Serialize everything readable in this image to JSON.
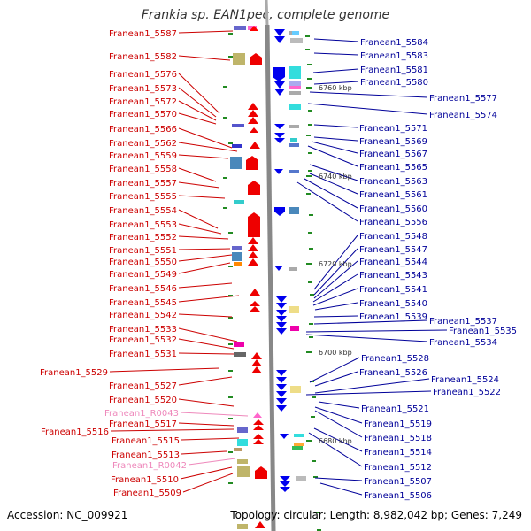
{
  "title": "Frankia sp. EAN1pec, complete genome",
  "accession": "Accession: NC_009921",
  "topology": "Topology: circular; Length: 8,982,042 bp; Genes: 7,249",
  "colors": {
    "left": "#cc0000",
    "right": "#000099",
    "rna": "#ee88bb",
    "axis": "#888888",
    "tick": "#228b22"
  },
  "left_labels": [
    {
      "name": "Franean1_5587",
      "rna": false
    },
    {
      "name": "Franean1_5582",
      "rna": false
    },
    {
      "name": "Franean1_5576",
      "rna": false
    },
    {
      "name": "Franean1_5573",
      "rna": false
    },
    {
      "name": "Franean1_5572",
      "rna": false
    },
    {
      "name": "Franean1_5570",
      "rna": false
    },
    {
      "name": "Franean1_5566",
      "rna": false
    },
    {
      "name": "Franean1_5562",
      "rna": false
    },
    {
      "name": "Franean1_5559",
      "rna": false
    },
    {
      "name": "Franean1_5558",
      "rna": false
    },
    {
      "name": "Franean1_5557",
      "rna": false
    },
    {
      "name": "Franean1_5555",
      "rna": false
    },
    {
      "name": "Franean1_5554",
      "rna": false
    },
    {
      "name": "Franean1_5553",
      "rna": false
    },
    {
      "name": "Franean1_5552",
      "rna": false
    },
    {
      "name": "Franean1_5551",
      "rna": false
    },
    {
      "name": "Franean1_5550",
      "rna": false
    },
    {
      "name": "Franean1_5549",
      "rna": false
    },
    {
      "name": "Franean1_5546",
      "rna": false
    },
    {
      "name": "Franean1_5545",
      "rna": false
    },
    {
      "name": "Franean1_5542",
      "rna": false
    },
    {
      "name": "Franean1_5533",
      "rna": false
    },
    {
      "name": "Franean1_5532",
      "rna": false
    },
    {
      "name": "Franean1_5531",
      "rna": false
    },
    {
      "name": "Franean1_5529",
      "rna": false
    },
    {
      "name": "Franean1_5527",
      "rna": false
    },
    {
      "name": "Franean1_5520",
      "rna": false
    },
    {
      "name": "Franean1_R0043",
      "rna": true
    },
    {
      "name": "Franean1_5517",
      "rna": false
    },
    {
      "name": "Franean1_5516",
      "rna": false
    },
    {
      "name": "Franean1_5515",
      "rna": false
    },
    {
      "name": "Franean1_5513",
      "rna": false
    },
    {
      "name": "Franean1_R0042",
      "rna": true
    },
    {
      "name": "Franean1_5510",
      "rna": false
    },
    {
      "name": "Franean1_5509",
      "rna": false
    }
  ],
  "right_labels": [
    "Franean1_5584",
    "Franean1_5583",
    "Franean1_5581",
    "Franean1_5580",
    "Franean1_5577",
    "Franean1_5574",
    "Franean1_5571",
    "Franean1_5569",
    "Franean1_5567",
    "Franean1_5565",
    "Franean1_5563",
    "Franean1_5561",
    "Franean1_5560",
    "Franean1_5556",
    "Franean1_5548",
    "Franean1_5547",
    "Franean1_5544",
    "Franean1_5543",
    "Franean1_5541",
    "Franean1_5540",
    "Franean1_5539",
    "Franean1_5537",
    "Franean1_5535",
    "Franean1_5534",
    "Franean1_5528",
    "Franean1_5526",
    "Franean1_5524",
    "Franean1_5522",
    "Franean1_5521",
    "Franean1_5519",
    "Franean1_5518",
    "Franean1_5514",
    "Franean1_5512",
    "Franean1_5507",
    "Franean1_5506"
  ],
  "kbp_marks": [
    "6760 kbp",
    "6740 kbp",
    "6720 kbp",
    "6700 kbp",
    "6680 kbp"
  ]
}
